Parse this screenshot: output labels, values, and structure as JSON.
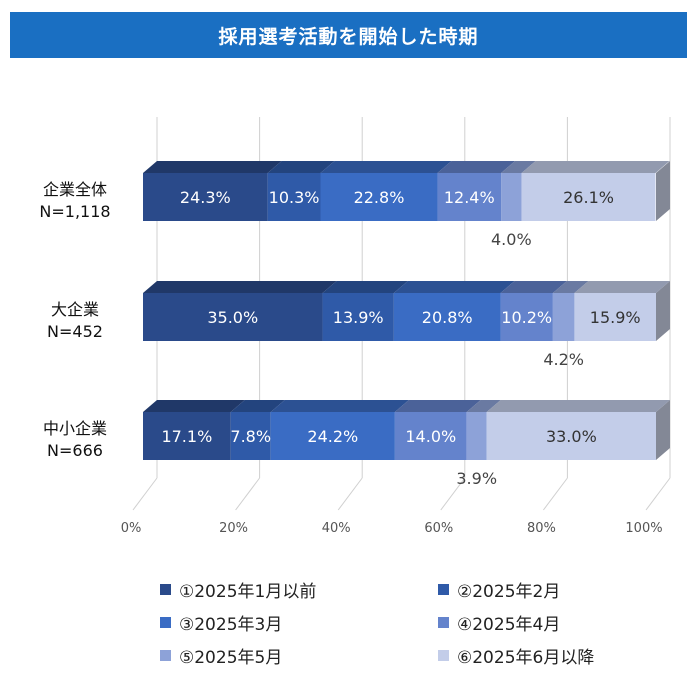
{
  "header": {
    "title": "採用選考活動を開始した時期"
  },
  "chart_data": {
    "type": "bar",
    "orientation": "horizontal",
    "stacked": true,
    "categories": [
      "企業全体",
      "大企業",
      "中小企業"
    ],
    "category_n": [
      "N=1,118",
      "N=452",
      "N=666"
    ],
    "xlim": [
      0,
      100
    ],
    "x_ticks": [
      "0%",
      "20%",
      "40%",
      "60%",
      "80%",
      "100%"
    ],
    "grid": true,
    "legend_position": "bottom",
    "series": [
      {
        "name": "①2025年1月以前",
        "values": [
          24.3,
          35.0,
          17.1
        ],
        "labels": [
          "24.3%",
          "35.0%",
          "17.1%"
        ],
        "color": "#2a4a8a"
      },
      {
        "name": "②2025年2月",
        "values": [
          10.3,
          13.9,
          7.8
        ],
        "labels": [
          "10.3%",
          "13.9%",
          "7.8%"
        ],
        "color": "#2f5aa8"
      },
      {
        "name": "③2025年3月",
        "values": [
          22.8,
          20.8,
          24.2
        ],
        "labels": [
          "22.8%",
          "20.8%",
          "24.2%"
        ],
        "color": "#3a6cc4"
      },
      {
        "name": "④2025年4月",
        "values": [
          12.4,
          10.2,
          14.0
        ],
        "labels": [
          "12.4%",
          "10.2%",
          "14.0%"
        ],
        "color": "#6483cc"
      },
      {
        "name": "⑤2025年5月",
        "values": [
          4.0,
          4.2,
          3.9
        ],
        "labels": [
          "4.0%",
          "4.2%",
          "3.9%"
        ],
        "color": "#8da2d8"
      },
      {
        "name": "⑥2025年6月以降",
        "values": [
          26.1,
          15.9,
          33.0
        ],
        "labels": [
          "26.1%",
          "15.9%",
          "33.0%"
        ],
        "color": "#c3cde9"
      }
    ]
  }
}
